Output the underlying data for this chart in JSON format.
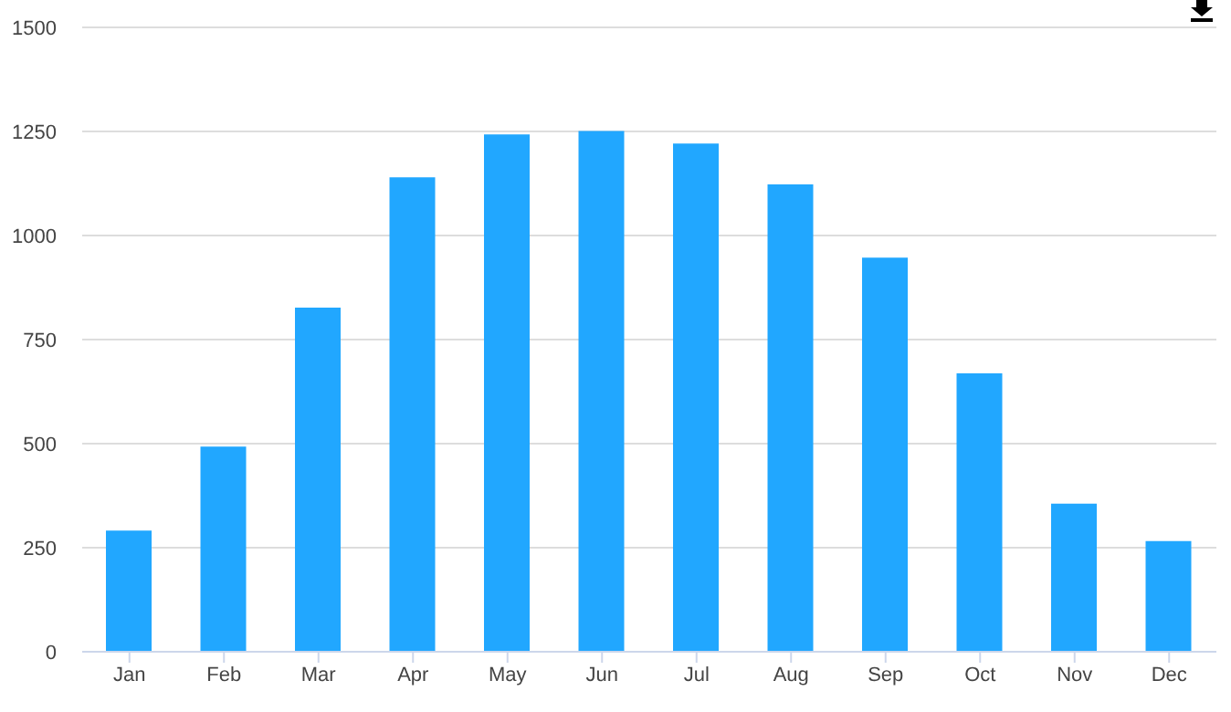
{
  "chart_data": {
    "type": "bar",
    "categories": [
      "Jan",
      "Feb",
      "Mar",
      "Apr",
      "May",
      "Jun",
      "Jul",
      "Aug",
      "Sep",
      "Oct",
      "Nov",
      "Dec"
    ],
    "values": [
      291,
      493,
      827,
      1140,
      1243,
      1251,
      1221,
      1123,
      947,
      669,
      356,
      266
    ],
    "color": "#21a7ff",
    "ylim": [
      0,
      1500
    ],
    "yticks": [
      0,
      250,
      500,
      750,
      1000,
      1250,
      1500
    ],
    "grid": "y"
  }
}
